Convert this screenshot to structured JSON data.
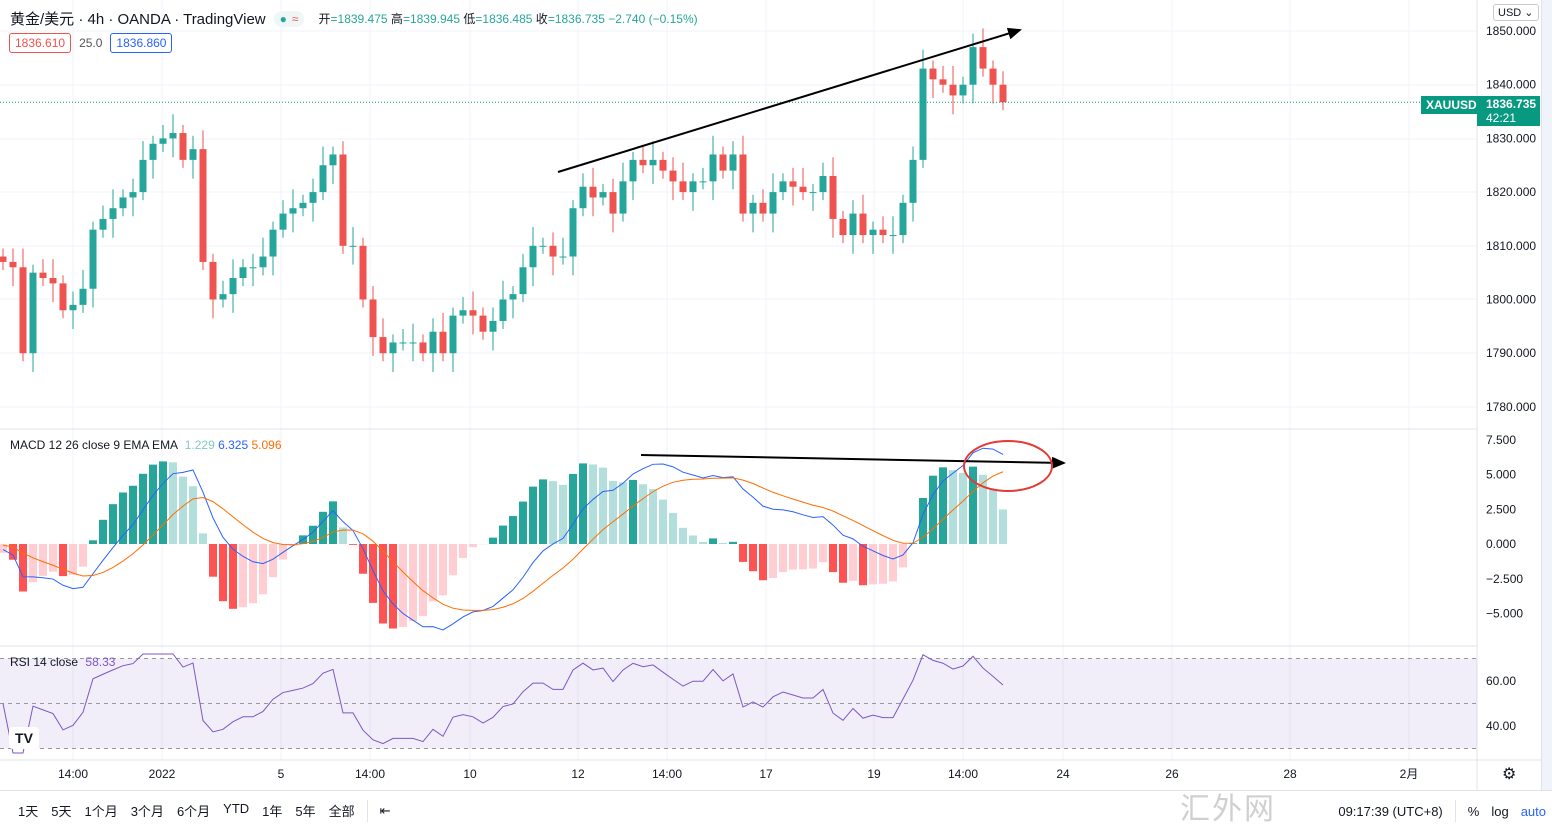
{
  "header": {
    "symbol": "黄金/美元 · 4h · OANDA · TradingView",
    "open_label": "开",
    "open": "1839.475",
    "high_label": "高",
    "high": "1839.945",
    "low_label": "低",
    "low": "1836.485",
    "close_label": "收",
    "close": "1836.735",
    "change": "−2.740 (−0.15%)",
    "bid": "1836.610",
    "spread": "25.0",
    "ask": "1836.860",
    "status_dot": "●",
    "status_wave": "≈"
  },
  "price_axis": {
    "currency": "USD ⌄",
    "ticks": [
      "1850.000",
      "1840.000",
      "1830.000",
      "1820.000",
      "1810.000",
      "1800.000",
      "1790.000",
      "1780.000"
    ],
    "tag_symbol": "XAUUSD",
    "tag_price": "1836.735",
    "tag_countdown": "42:21"
  },
  "macd": {
    "label": "MACD 12 26 close 9 EMA EMA",
    "hist": "1.229",
    "macd": "6.325",
    "signal": "5.096",
    "ticks": [
      "7.500",
      "5.000",
      "2.500",
      "0.000",
      "−2.500",
      "−5.000"
    ]
  },
  "rsi": {
    "label": "RSI 14 close",
    "value": "58.33",
    "ticks": [
      "60.00",
      "40.00"
    ]
  },
  "time_axis": [
    "14:00",
    "2022",
    "5",
    "14:00",
    "10",
    "12",
    "14:00",
    "17",
    "19",
    "14:00",
    "24",
    "26",
    "28",
    "2月"
  ],
  "bottom": {
    "ranges": [
      "1天",
      "5天",
      "1个月",
      "3个月",
      "6个月",
      "YTD",
      "1年",
      "5年",
      "全部"
    ],
    "replay_icon": "⇤",
    "clock": "09:17:39 (UTC+8)",
    "percent": "%",
    "log": "log",
    "auto": "auto"
  },
  "watermark": "汇外网",
  "logo": "TV",
  "colors": {
    "up": "#26a69a",
    "down": "#ef5350",
    "macd": "#2962ff",
    "signal": "#ff6d00",
    "rsi": "#7e57c2"
  },
  "chart_data": {
    "type": "candlestick",
    "title": "黄金/美元 4h",
    "ylim": [
      1776,
      1856
    ],
    "closes": [
      1807,
      1806,
      1790,
      1805,
      1804,
      1803,
      1798,
      1799,
      1802,
      1813,
      1815,
      1817,
      1819,
      1820,
      1826,
      1829,
      1830,
      1831,
      1826,
      1828,
      1807,
      1800,
      1801,
      1804,
      1806,
      1806,
      1808,
      1813,
      1816,
      1817,
      1818,
      1820,
      1825,
      1827,
      1810,
      1810,
      1800,
      1793,
      1790,
      1792,
      1792,
      1792,
      1790,
      1794,
      1790,
      1797,
      1798,
      1797,
      1794,
      1796,
      1800,
      1801,
      1806,
      1810,
      1810,
      1808,
      1808,
      1817,
      1821,
      1819,
      1820,
      1816,
      1822,
      1826,
      1825,
      1826,
      1824,
      1822,
      1820,
      1822,
      1822,
      1827,
      1824,
      1827,
      1816,
      1818,
      1816,
      1820,
      1822,
      1821,
      1820,
      1820,
      1823,
      1815,
      1812,
      1816,
      1812,
      1813,
      1812,
      1812,
      1818,
      1826,
      1843,
      1841,
      1840,
      1838,
      1840,
      1847,
      1843,
      1840,
      1836.735
    ],
    "current_price": 1836.735,
    "annotations": [
      "price uptrend arrow",
      "MACD flat arrow",
      "MACD divergence circle"
    ],
    "indicators": [
      "MACD 12 26 9",
      "RSI 14"
    ]
  }
}
